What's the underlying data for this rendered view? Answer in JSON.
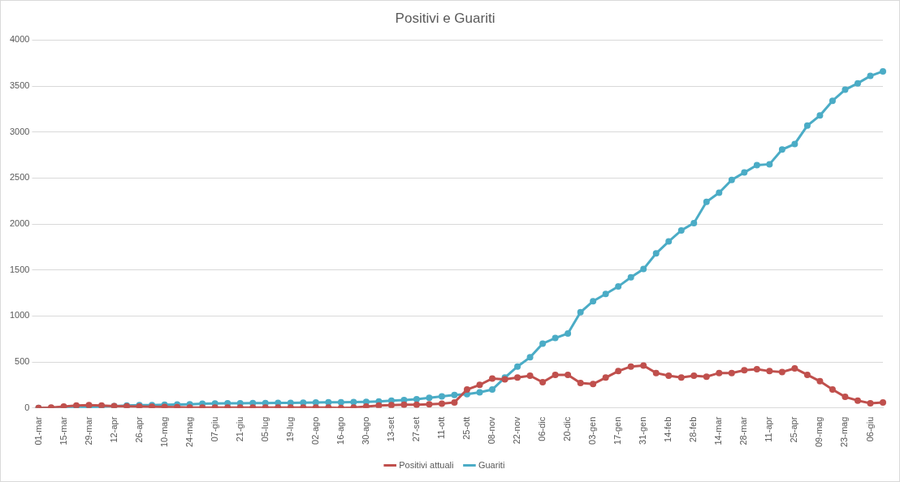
{
  "chart_data": {
    "type": "line",
    "title": "Positivi e Guariti",
    "categories": [
      "01-mar",
      null,
      "15-mar",
      null,
      "29-mar",
      null,
      "12-apr",
      null,
      "26-apr",
      null,
      "10-mag",
      null,
      "24-mag",
      null,
      "07-giu",
      null,
      "21-giu",
      null,
      "05-lug",
      null,
      "19-lug",
      null,
      "02-ago",
      null,
      "16-ago",
      null,
      "30-ago",
      null,
      "13-set",
      null,
      "27-set",
      null,
      "11-ott",
      null,
      "25-ott",
      null,
      "08-nov",
      null,
      "22-nov",
      null,
      "06-dic",
      null,
      "20-dic",
      null,
      "03-gen",
      null,
      "17-gen",
      null,
      "31-gen",
      null,
      "14-feb",
      null,
      "28-feb",
      null,
      "14-mar",
      null,
      "28-mar",
      null,
      "11-apr",
      null,
      "25-apr",
      null,
      "09-mag",
      null,
      "23-mag",
      null,
      "06-giu",
      null
    ],
    "series": [
      {
        "name": "Positivi attuali",
        "color": "#c0504d",
        "marker": "circle",
        "line_style": "solid",
        "values": [
          0,
          5,
          15,
          25,
          30,
          25,
          20,
          18,
          15,
          12,
          10,
          8,
          5,
          5,
          5,
          5,
          5,
          5,
          5,
          5,
          5,
          5,
          5,
          5,
          0,
          5,
          15,
          25,
          30,
          35,
          35,
          40,
          45,
          60,
          200,
          250,
          320,
          310,
          330,
          350,
          280,
          360,
          360,
          270,
          260,
          330,
          400,
          450,
          460,
          380,
          350,
          330,
          350,
          340,
          380,
          380,
          410,
          420,
          400,
          390,
          430,
          360,
          290,
          200,
          120,
          80,
          50,
          60
        ]
      },
      {
        "name": "Guariti",
        "color": "#4bacc6",
        "marker": "circle",
        "line_style": "solid",
        "values": [
          0,
          0,
          0,
          0,
          5,
          15,
          20,
          25,
          30,
          30,
          35,
          38,
          40,
          45,
          48,
          50,
          50,
          52,
          52,
          55,
          55,
          58,
          60,
          62,
          62,
          63,
          65,
          70,
          78,
          85,
          95,
          110,
          125,
          140,
          150,
          170,
          200,
          330,
          450,
          550,
          700,
          760,
          810,
          1040,
          1160,
          1240,
          1320,
          1420,
          1510,
          1680,
          1810,
          1930,
          2010,
          2240,
          2340,
          2480,
          2560,
          2640,
          2650,
          2810,
          2870,
          3070,
          3180,
          3340,
          3460,
          3530,
          3610,
          3660
        ]
      }
    ],
    "ylim": [
      0,
      4000
    ],
    "yticks": [
      0,
      500,
      1000,
      1500,
      2000,
      2500,
      3000,
      3500,
      4000
    ],
    "grid": true,
    "legend": "bottom"
  }
}
